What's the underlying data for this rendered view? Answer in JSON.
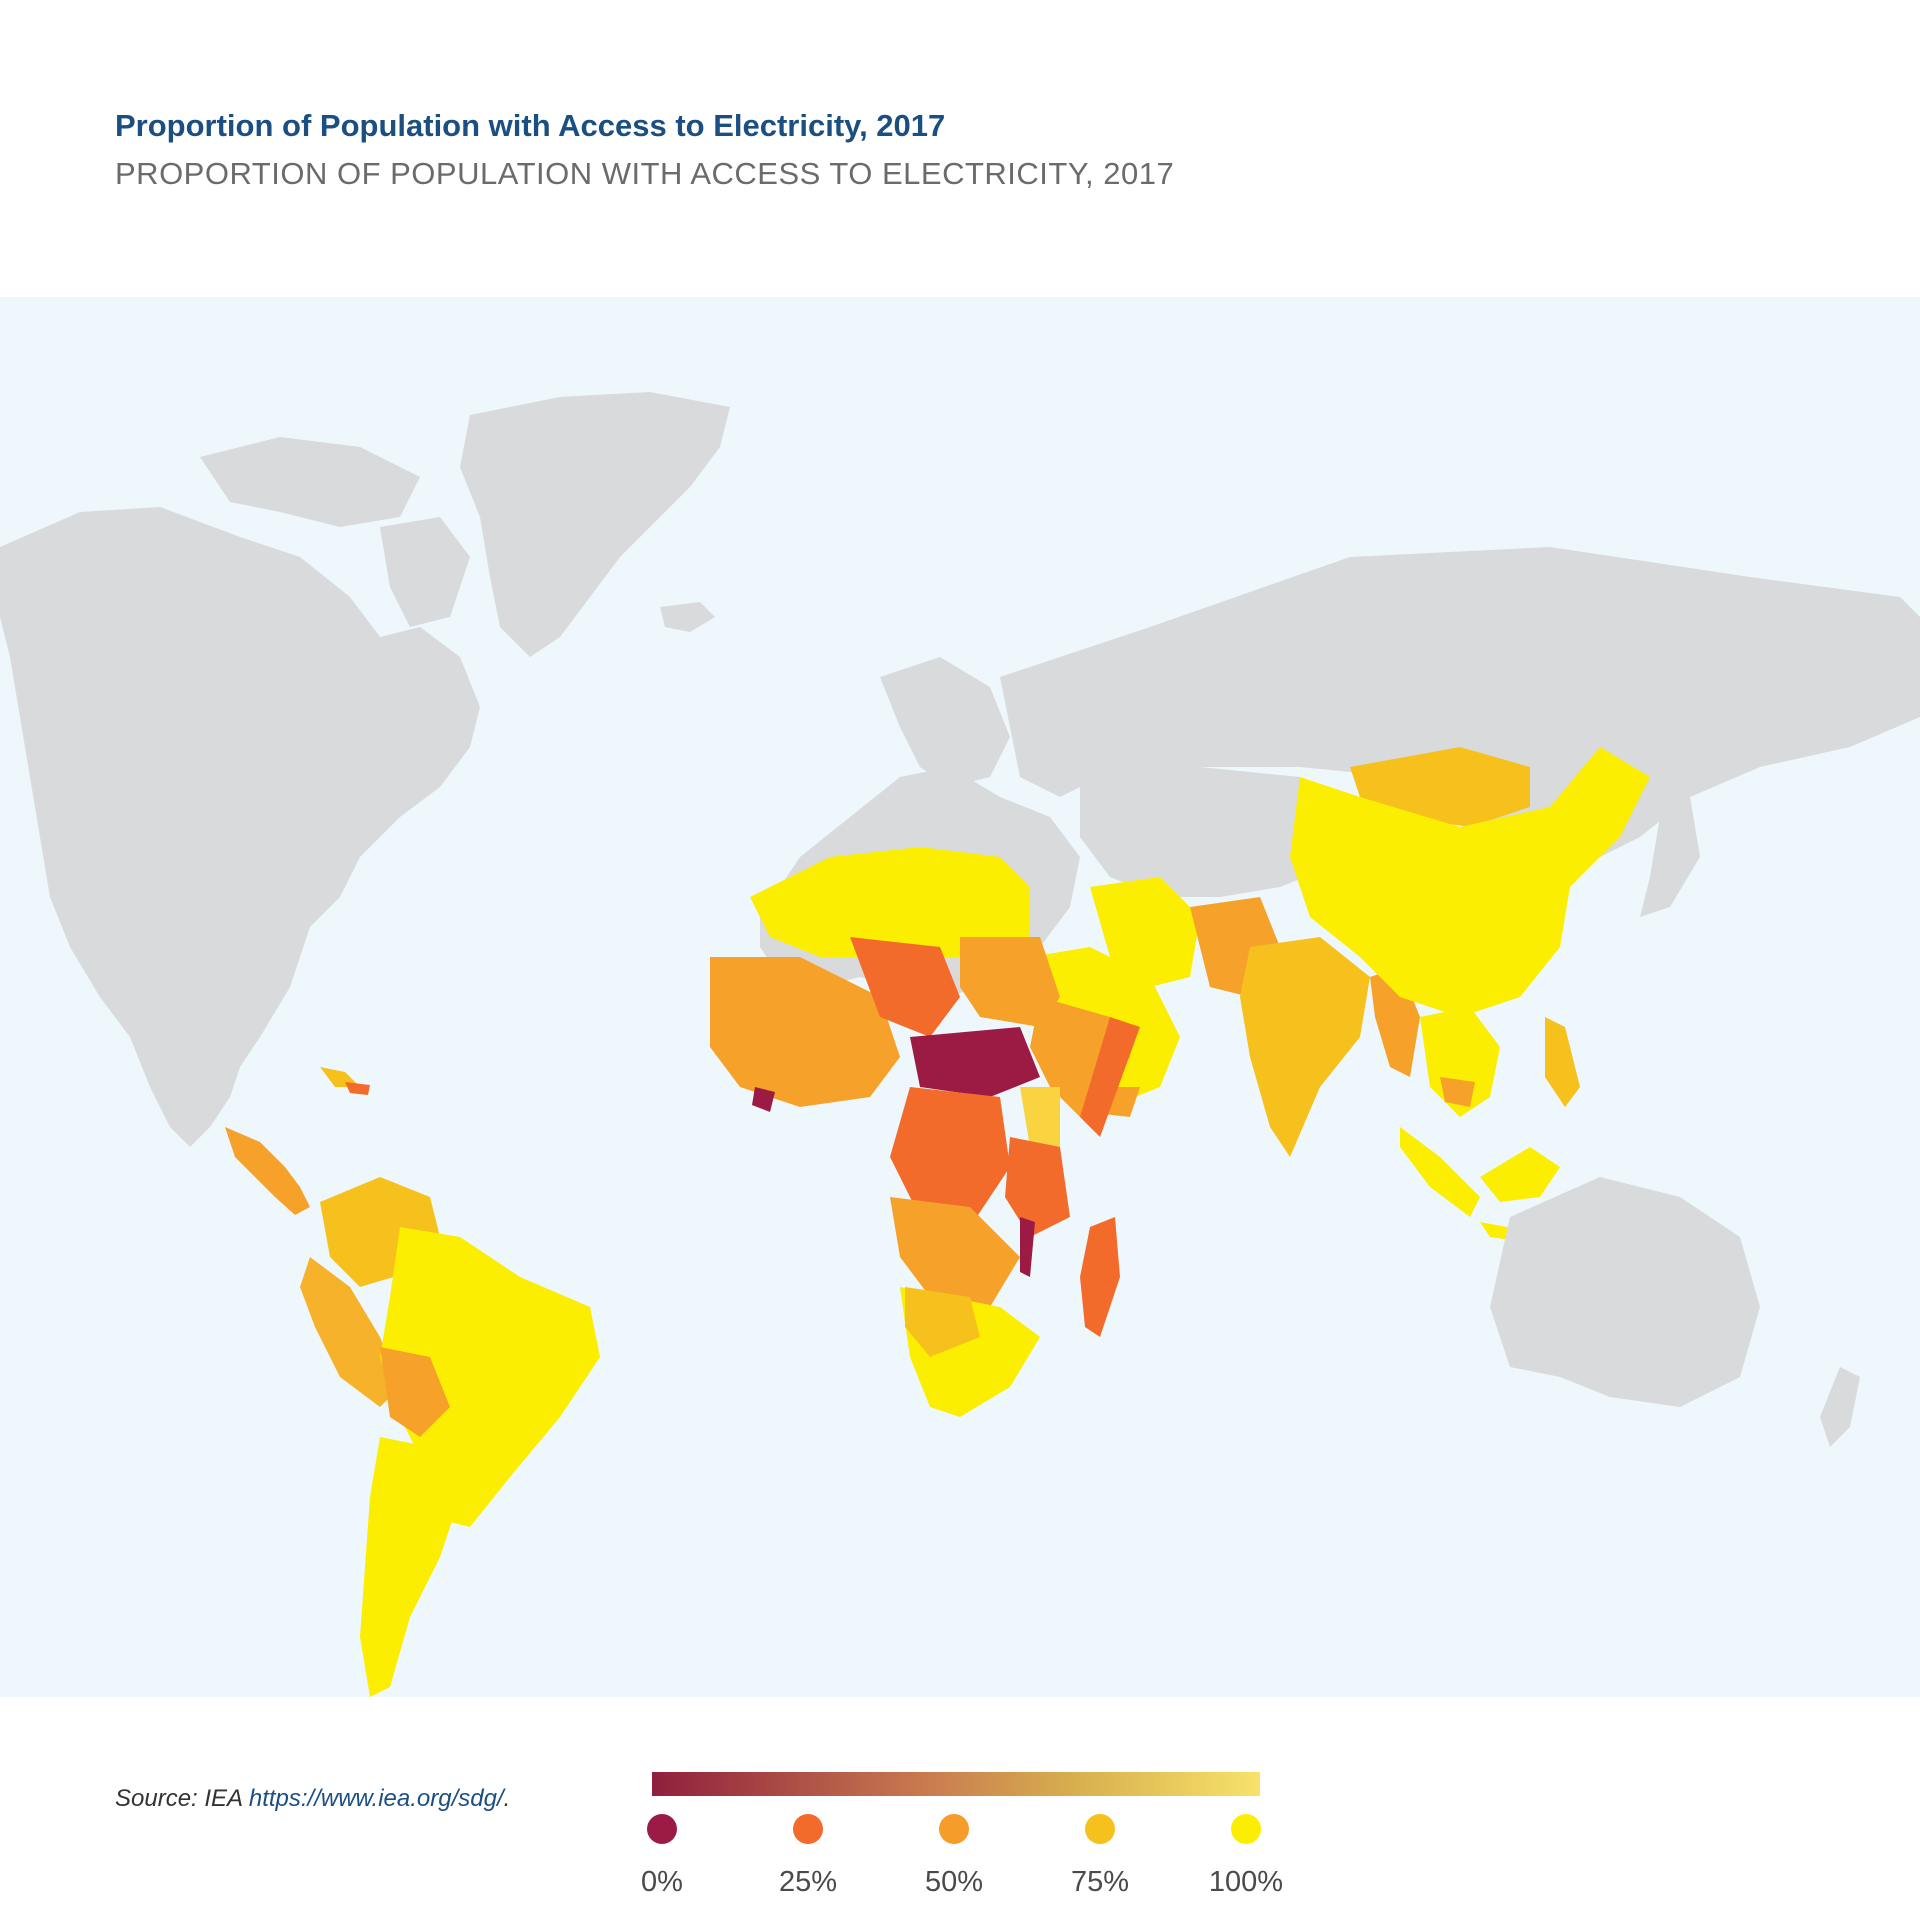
{
  "header": {
    "title": "Proportion of Population with Access to Electricity, 2017",
    "subtitle": "PROPORTION OF POPULATION WITH ACCESS TO ELECTRICITY, 2017"
  },
  "legend": {
    "items": [
      {
        "label": "0%",
        "color": "#9c1b44"
      },
      {
        "label": "25%",
        "color": "#f26b2a"
      },
      {
        "label": "50%",
        "color": "#f59c2a"
      },
      {
        "label": "75%",
        "color": "#f6c11c"
      },
      {
        "label": "100%",
        "color": "#fbee00"
      }
    ],
    "gradient_start": "#8f1f3d",
    "gradient_end": "#f7e26a"
  },
  "source": {
    "prefix": "Source: IEA ",
    "link": "https://www.iea.org/sdg/",
    "suffix": "."
  },
  "colors": {
    "ocean": "#eef7fc",
    "no_data_land": "#d9dadb",
    "title": "#1b4f82"
  }
}
